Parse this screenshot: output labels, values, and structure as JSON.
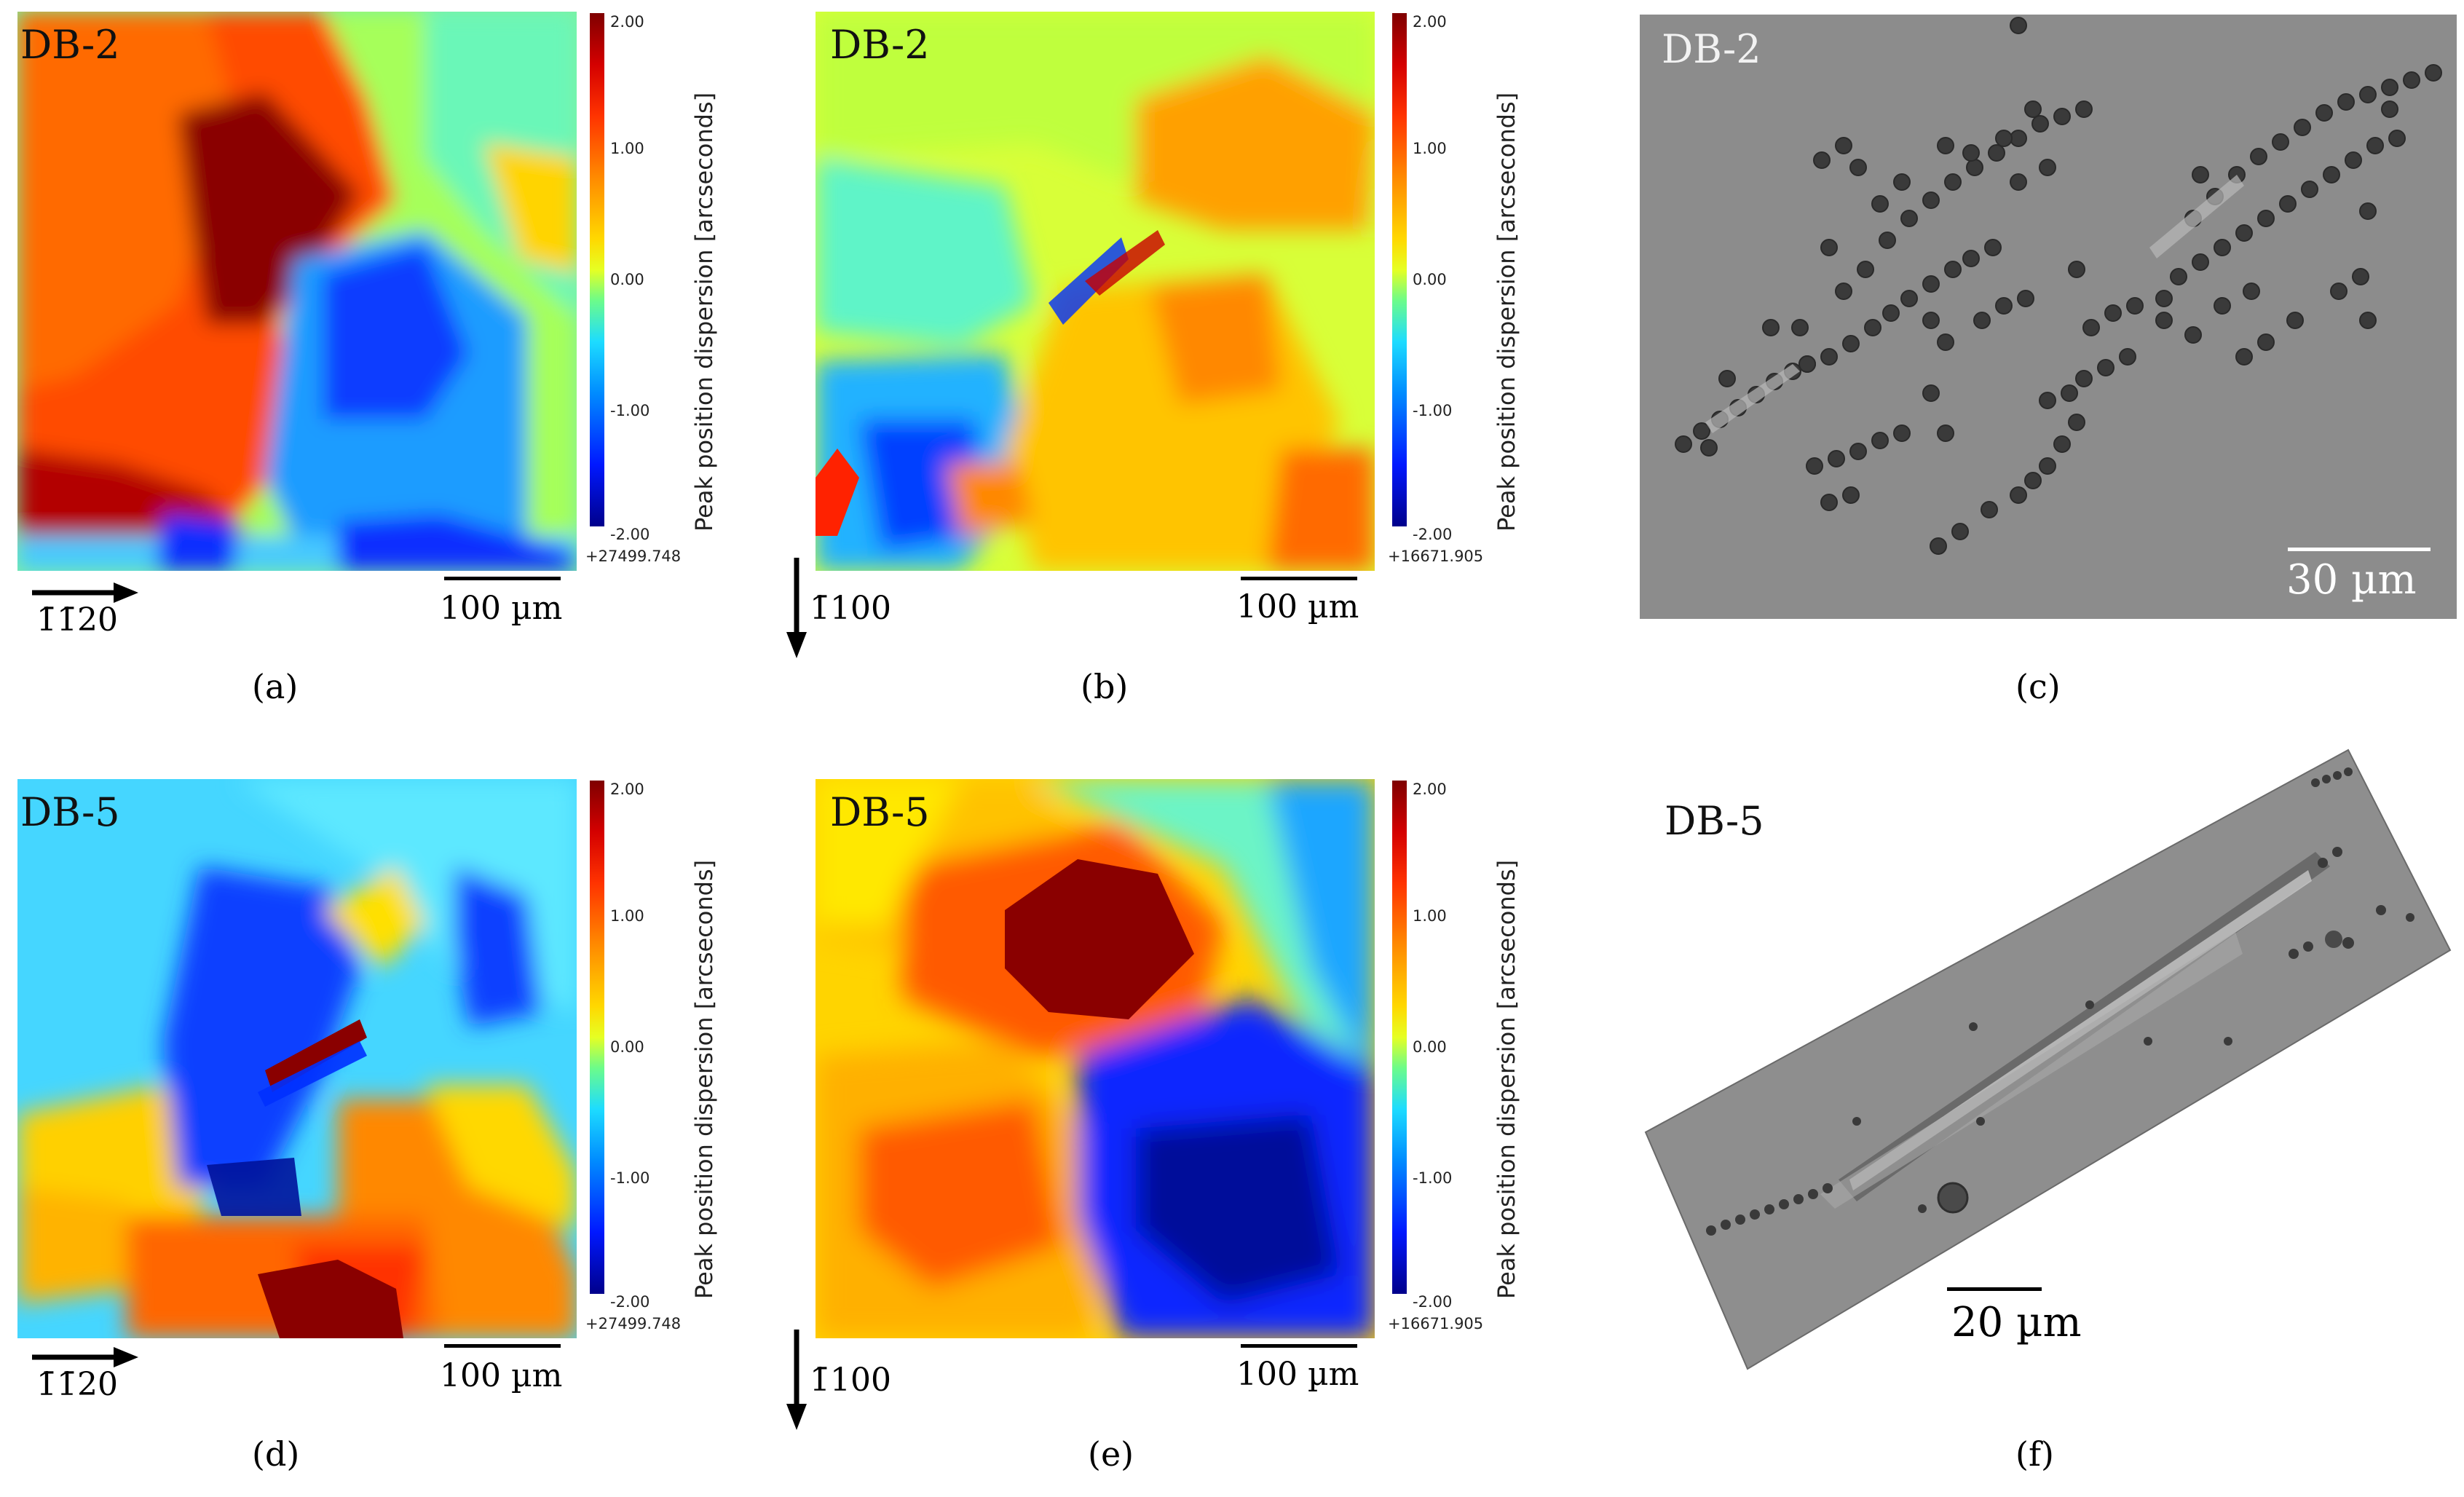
{
  "panels": {
    "a": {
      "label": "(a)",
      "sample": "DB-2",
      "direction": "1̄1̄20",
      "scale": "100 µm"
    },
    "b": {
      "label": "(b)",
      "sample": "DB-2",
      "direction": "1̄100",
      "scale": "100 µm"
    },
    "c": {
      "label": "(c)",
      "sample": "DB-2",
      "scale": "30 µm"
    },
    "d": {
      "label": "(d)",
      "sample": "DB-5",
      "direction": "1̄1̄20",
      "scale": "100 µm"
    },
    "e": {
      "label": "(e)",
      "sample": "DB-5",
      "direction": "1̄100",
      "scale": "100 µm"
    },
    "f": {
      "label": "(f)",
      "sample": "DB-5",
      "scale": "20 µm"
    }
  },
  "colorbar": {
    "title": "Peak position dispersion [arcseconds]",
    "ticks": [
      "2.00",
      "1.00",
      "0.00",
      "-1.00",
      "-2.00"
    ],
    "offset_a": "+27499.748",
    "offset_b": "+16671.905",
    "offset_d": "+27499.748",
    "offset_e": "+16671.905"
  },
  "colors": {
    "max": "#7f0000",
    "high": "#ff3300",
    "mid": "#e6ff23",
    "low": "#0018ff",
    "min": "#00008b",
    "sem_background": "#8a8a8a"
  }
}
